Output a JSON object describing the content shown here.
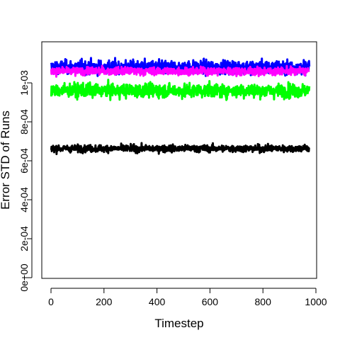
{
  "chart_data": {
    "type": "line",
    "title": "",
    "xlabel": "Timestep",
    "ylabel": "Error STD of Runs",
    "xlim": [
      0,
      1000
    ],
    "ylim": [
      0,
      0.00115
    ],
    "x_ticks": [
      {
        "value": 0,
        "label": "0"
      },
      {
        "value": 200,
        "label": "200"
      },
      {
        "value": 400,
        "label": "400"
      },
      {
        "value": 600,
        "label": "600"
      },
      {
        "value": 800,
        "label": "800"
      },
      {
        "value": 1000,
        "label": "1000"
      }
    ],
    "y_ticks": [
      {
        "value": 0,
        "label": "0e+00"
      },
      {
        "value": 0.0002,
        "label": "2e-04"
      },
      {
        "value": 0.0004,
        "label": "4e-04"
      },
      {
        "value": 0.0006,
        "label": "6e-04"
      },
      {
        "value": 0.0008,
        "label": "8e-04"
      },
      {
        "value": 0.001,
        "label": "1e-03"
      }
    ],
    "grid": false,
    "legend": "none",
    "x_range": [
      1,
      975
    ],
    "series": [
      {
        "color": "#0000ff",
        "mean": 0.00108,
        "noise": 3.5e-05
      },
      {
        "color": "#000000",
        "mean": 0.000663,
        "noise": 1.8e-05
      },
      {
        "color": "#00ff00",
        "mean": 0.00096,
        "noise": 3.5e-05
      },
      {
        "color": "#ff00ff",
        "mean": 0.00106,
        "noise": 2e-05
      }
    ]
  }
}
